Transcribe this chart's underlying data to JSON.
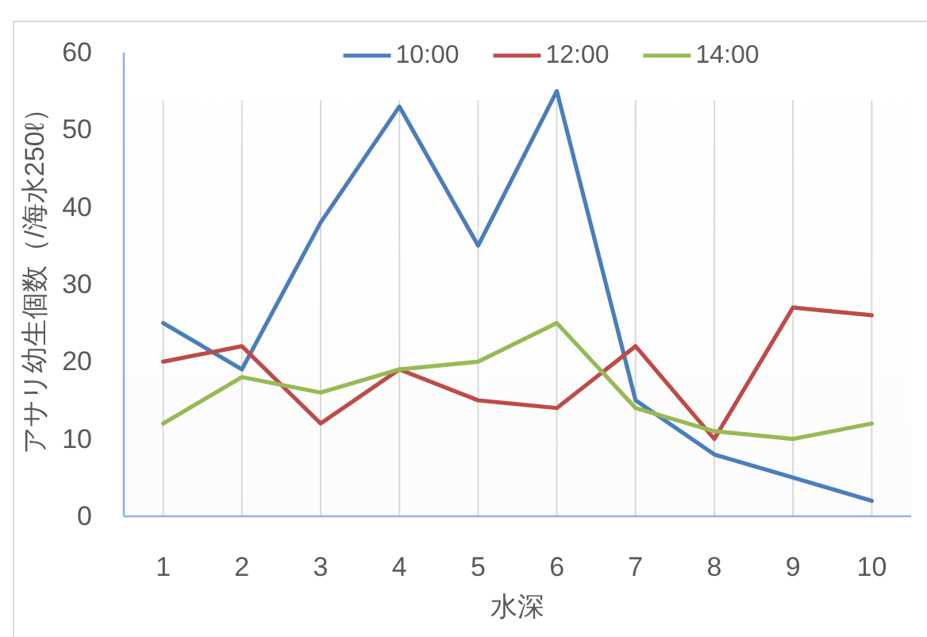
{
  "chart_data": {
    "type": "line",
    "xlabel": "水深",
    "ylabel": "アサリ幼生個数（/海水250ℓ）",
    "categories": [
      "1",
      "2",
      "3",
      "4",
      "5",
      "6",
      "7",
      "8",
      "9",
      "10"
    ],
    "ylim": [
      0,
      60
    ],
    "yticks": [
      0,
      10,
      20,
      30,
      40,
      50,
      60
    ],
    "grid": "x",
    "legend": "top",
    "series": [
      {
        "name": "10:00",
        "color": "#4a7ebb",
        "values": [
          25,
          19,
          38,
          53,
          35,
          55,
          15,
          8,
          5,
          2
        ]
      },
      {
        "name": "12:00",
        "color": "#be4b48",
        "values": [
          20,
          22,
          12,
          19,
          15,
          14,
          22,
          10,
          27,
          26
        ]
      },
      {
        "name": "14:00",
        "color": "#98b954",
        "values": [
          12,
          18,
          16,
          19,
          20,
          25,
          14,
          11,
          10,
          12
        ]
      }
    ]
  }
}
